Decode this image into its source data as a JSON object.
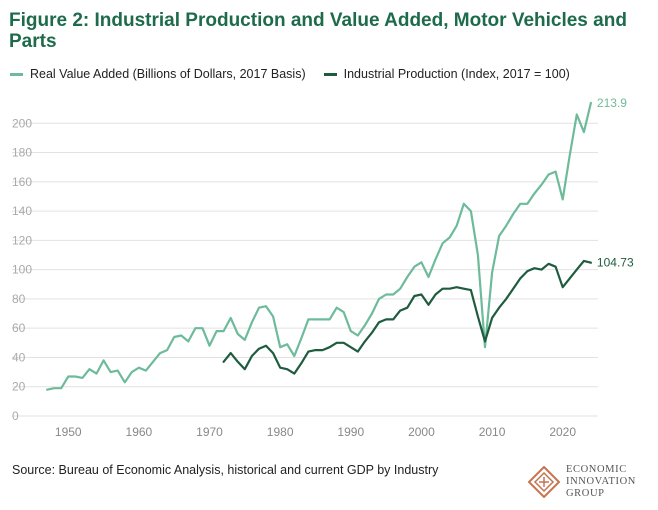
{
  "title": "Figure 2: Industrial Production and Value Added, Motor Vehicles and Parts",
  "source": "Source: Bureau of Economic Analysis, historical and current GDP by Industry",
  "logo": {
    "line1": "ECONOMIC",
    "line2": "INNOVATION",
    "line3": "GROUP",
    "icon": "diamond-logo-icon"
  },
  "colors": {
    "title": "#1e6b4b",
    "value_added": "#6dbb9a",
    "production": "#1f5c3f",
    "logo": "#c8734f",
    "grid": "#e2e2e2",
    "axis_text": "#aaaaaa"
  },
  "chart_data": {
    "type": "line",
    "title": "Figure 2: Industrial Production and Value Added, Motor Vehicles and Parts",
    "xlabel": "",
    "ylabel": "",
    "xlim": [
      1946,
      2025
    ],
    "ylim": [
      0,
      220
    ],
    "xticks": [
      1950,
      1960,
      1970,
      1980,
      1990,
      2000,
      2010,
      2020
    ],
    "yticks": [
      0,
      20,
      40,
      60,
      80,
      100,
      120,
      140,
      160,
      180,
      200
    ],
    "grid": "horizontal",
    "legend_position": "top-left",
    "series": [
      {
        "name": "Real Value Added (Billions of Dollars, 2017 Basis)",
        "color": "#6dbb9a",
        "end_label": "213.9",
        "x": [
          1947,
          1948,
          1949,
          1950,
          1951,
          1952,
          1953,
          1954,
          1955,
          1956,
          1957,
          1958,
          1959,
          1960,
          1961,
          1962,
          1963,
          1964,
          1965,
          1966,
          1967,
          1968,
          1969,
          1970,
          1971,
          1972,
          1973,
          1974,
          1975,
          1976,
          1977,
          1978,
          1979,
          1980,
          1981,
          1982,
          1983,
          1984,
          1985,
          1986,
          1987,
          1988,
          1989,
          1990,
          1991,
          1992,
          1993,
          1994,
          1995,
          1996,
          1997,
          1998,
          1999,
          2000,
          2001,
          2002,
          2003,
          2004,
          2005,
          2006,
          2007,
          2008,
          2009,
          2010,
          2011,
          2012,
          2013,
          2014,
          2015,
          2016,
          2017,
          2018,
          2019,
          2020,
          2021,
          2022,
          2023,
          2024
        ],
        "values": [
          18,
          19,
          19,
          27,
          27,
          26,
          32,
          29,
          38,
          30,
          31,
          23,
          30,
          33,
          31,
          37,
          43,
          45,
          54,
          55,
          51,
          60,
          60,
          48,
          58,
          58,
          67,
          56,
          52,
          64,
          74,
          75,
          68,
          47,
          49,
          41,
          53,
          66,
          66,
          66,
          66,
          74,
          71,
          58,
          55,
          62,
          70,
          80,
          83,
          83,
          87,
          95,
          102,
          105,
          95,
          107,
          118,
          122,
          130,
          145,
          140,
          110,
          47,
          98,
          123,
          130,
          138,
          145,
          145,
          152,
          158,
          165,
          167,
          148,
          178,
          206,
          194,
          213.9
        ]
      },
      {
        "name": "Industrial Production (Index, 2017 = 100)",
        "color": "#1f5c3f",
        "end_label": "104.73",
        "x": [
          1972,
          1973,
          1974,
          1975,
          1976,
          1977,
          1978,
          1979,
          1980,
          1981,
          1982,
          1983,
          1984,
          1985,
          1986,
          1987,
          1988,
          1989,
          1990,
          1991,
          1992,
          1993,
          1994,
          1995,
          1996,
          1997,
          1998,
          1999,
          2000,
          2001,
          2002,
          2003,
          2004,
          2005,
          2006,
          2007,
          2008,
          2009,
          2010,
          2011,
          2012,
          2013,
          2014,
          2015,
          2016,
          2017,
          2018,
          2019,
          2020,
          2021,
          2022,
          2023,
          2024
        ],
        "values": [
          37,
          43,
          37,
          32,
          41,
          46,
          48,
          43,
          33,
          32,
          29,
          36,
          44,
          45,
          45,
          47,
          50,
          50,
          47,
          44,
          51,
          57,
          64,
          66,
          66,
          72,
          74,
          82,
          83,
          76,
          83,
          87,
          87,
          88,
          87,
          86,
          68,
          51,
          67,
          74,
          80,
          87,
          94,
          99,
          101,
          100,
          104,
          102,
          88,
          94,
          100,
          106,
          104.73
        ]
      }
    ]
  }
}
